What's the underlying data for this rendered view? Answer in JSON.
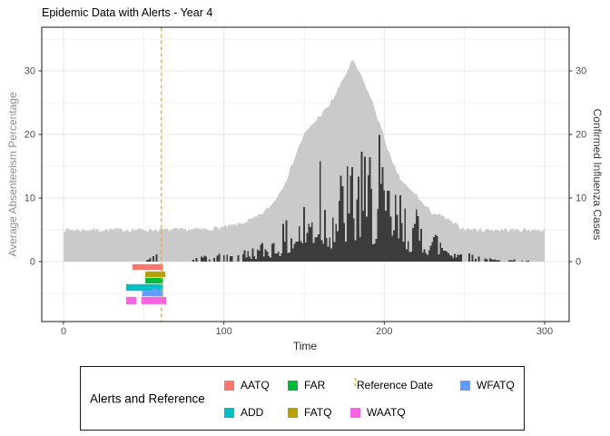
{
  "chart_data": {
    "type": "combo (area + bar + alert-rects + vline)",
    "title": "Epidemic Data with Alerts - Year 4",
    "x": {
      "label": "Time",
      "ticks": [
        0,
        100,
        200,
        300
      ],
      "minor_ticks": [
        50,
        150,
        250
      ],
      "range": [
        -13.6,
        315.3
      ]
    },
    "y_left": {
      "label": "Average Absenteeism Percentage",
      "ticks": [
        0,
        10,
        20,
        30
      ],
      "minor_ticks": [
        -5,
        5,
        15,
        25,
        35
      ],
      "range": [
        -9.4,
        36.9
      ]
    },
    "y_right": {
      "label": "Confirmed Influenza Cases",
      "ticks": [
        0,
        10,
        20,
        30
      ]
    },
    "reference_date": 61,
    "series": [
      {
        "name": "Average Absenteeism Percentage",
        "type": "area",
        "color": "#CACACA",
        "noise": 0.7,
        "seed": 7,
        "keypoints": [
          [
            0,
            5
          ],
          [
            15,
            5
          ],
          [
            30,
            5
          ],
          [
            45,
            5
          ],
          [
            60,
            5
          ],
          [
            75,
            5
          ],
          [
            90,
            5.1
          ],
          [
            100,
            5.4
          ],
          [
            110,
            5.9
          ],
          [
            120,
            6.9
          ],
          [
            125,
            7.8
          ],
          [
            130,
            9
          ],
          [
            135,
            11
          ],
          [
            140,
            13.5
          ],
          [
            145,
            17
          ],
          [
            150,
            20
          ],
          [
            155,
            21.5
          ],
          [
            160,
            23
          ],
          [
            165,
            24.3
          ],
          [
            170,
            26.5
          ],
          [
            175,
            29
          ],
          [
            180,
            31.6
          ],
          [
            184,
            30
          ],
          [
            188,
            27.8
          ],
          [
            192,
            25.5
          ],
          [
            196,
            22.5
          ],
          [
            200,
            19.5
          ],
          [
            205,
            15.5
          ],
          [
            210,
            13
          ],
          [
            215,
            11.5
          ],
          [
            220,
            10.5
          ],
          [
            225,
            8.8
          ],
          [
            230,
            7.7
          ],
          [
            238,
            6.9
          ],
          [
            243,
            6
          ],
          [
            248,
            5.3
          ],
          [
            253,
            5.1
          ],
          [
            260,
            5
          ],
          [
            275,
            5
          ],
          [
            290,
            5
          ],
          [
            300,
            5
          ]
        ]
      },
      {
        "name": "Confirmed Influenza Cases",
        "type": "bar",
        "color": "#3C3C3C",
        "seed": 42,
        "envelope": [
          [
            0,
            0
          ],
          [
            50,
            0
          ],
          [
            55,
            0.8
          ],
          [
            58,
            1.3
          ],
          [
            61,
            1
          ],
          [
            63,
            0
          ],
          [
            78,
            0
          ],
          [
            82,
            0.8
          ],
          [
            87,
            1.1
          ],
          [
            92,
            0.7
          ],
          [
            97,
            1.4
          ],
          [
            102,
            1.2
          ],
          [
            107,
            1.6
          ],
          [
            112,
            2
          ],
          [
            117,
            2.4
          ],
          [
            122,
            3
          ],
          [
            127,
            3.8
          ],
          [
            132,
            4.8
          ],
          [
            137,
            6
          ],
          [
            142,
            7.5
          ],
          [
            147,
            9
          ],
          [
            152,
            10.5
          ],
          [
            157,
            13
          ],
          [
            160,
            16
          ],
          [
            163,
            13
          ],
          [
            167,
            13.5
          ],
          [
            171,
            14.5
          ],
          [
            175,
            16
          ],
          [
            179,
            17
          ],
          [
            183,
            18
          ],
          [
            187,
            17
          ],
          [
            191,
            16.5
          ],
          [
            195,
            18
          ],
          [
            197,
            20
          ],
          [
            199,
            15
          ],
          [
            203,
            13.8
          ],
          [
            207,
            12.5
          ],
          [
            211,
            11
          ],
          [
            215,
            10
          ],
          [
            219,
            9
          ],
          [
            223,
            8
          ],
          [
            227,
            7
          ],
          [
            231,
            6
          ],
          [
            235,
            5
          ],
          [
            239,
            4
          ],
          [
            243,
            3
          ],
          [
            247,
            2.2
          ],
          [
            251,
            1.6
          ],
          [
            255,
            1.3
          ],
          [
            259,
            1
          ],
          [
            263,
            0.8
          ],
          [
            267,
            0.5
          ],
          [
            271,
            0.4
          ],
          [
            276,
            0.3
          ],
          [
            281,
            0.4
          ],
          [
            286,
            0.2
          ],
          [
            291,
            0.1
          ],
          [
            300,
            0
          ]
        ],
        "peak_spikes": [
          [
            160,
            15.8
          ],
          [
            177,
            15.0
          ],
          [
            186,
            17.3
          ],
          [
            191,
            16.4
          ],
          [
            197,
            19.9
          ]
        ]
      }
    ],
    "alerts": [
      {
        "name": "AATQ",
        "color": "#F8766D",
        "rects": [
          [
            43,
            62,
            -0.4,
            -1.3
          ]
        ]
      },
      {
        "name": "FATQ",
        "color": "#B79F00",
        "rects": [
          [
            51,
            63.5,
            -1.55,
            -2.45
          ]
        ]
      },
      {
        "name": "FAR",
        "color": "#00BA38",
        "rects": [
          [
            51,
            62,
            -2.55,
            -3.45
          ]
        ]
      },
      {
        "name": "ADD",
        "color": "#00BFC4",
        "rects": [
          [
            39,
            62,
            -3.55,
            -4.6
          ]
        ]
      },
      {
        "name": "WFATQ",
        "color": "#619CFF",
        "rects": [
          [
            49,
            62,
            -4.6,
            -5.45
          ],
          [
            55,
            59,
            -4.2,
            -5.45
          ]
        ]
      },
      {
        "name": "WAATQ",
        "color": "#F564E3",
        "rects": [
          [
            39,
            45.5,
            -5.55,
            -6.7
          ],
          [
            48.5,
            64,
            -5.55,
            -6.7
          ]
        ]
      }
    ],
    "style": {
      "grid_major": "#E4E4E4",
      "grid_minor": "#F1F1F1",
      "panel_border": "#2B2B2B",
      "tick_color": "#333333",
      "tick_label_color": "#4D4D4D",
      "reference_color": "#FFA500"
    }
  },
  "legend": {
    "title": "Alerts and Reference",
    "entries": [
      {
        "label": "AATQ",
        "color": "#F8766D",
        "type": "fill",
        "col": 0,
        "row": 0
      },
      {
        "label": "ADD",
        "color": "#00BFC4",
        "type": "fill",
        "col": 0,
        "row": 1
      },
      {
        "label": "FAR",
        "color": "#00BA38",
        "type": "fill",
        "col": 1,
        "row": 0
      },
      {
        "label": "FATQ",
        "color": "#B79F00",
        "type": "fill",
        "col": 1,
        "row": 1
      },
      {
        "label": "Reference Date",
        "color": "#FFA500",
        "type": "dashed-line",
        "col": 2,
        "row": 0
      },
      {
        "label": "WAATQ",
        "color": "#F564E3",
        "type": "fill",
        "col": 2,
        "row": 1
      },
      {
        "label": "WFATQ",
        "color": "#619CFF",
        "type": "fill",
        "col": 3,
        "row": 0
      }
    ]
  }
}
